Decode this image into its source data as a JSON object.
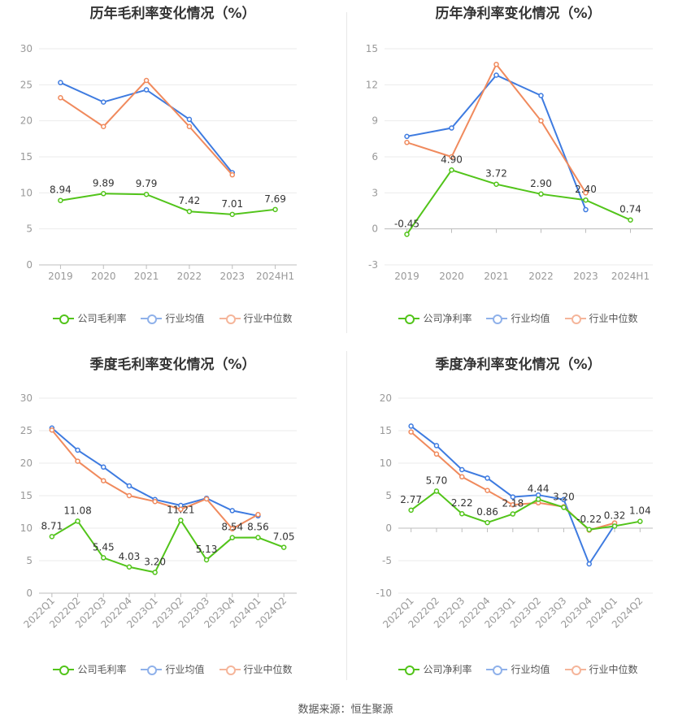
{
  "colors": {
    "company": "#52c41a",
    "avg": "#3e7be0",
    "median": "#f08a5d"
  },
  "source_label": "数据来源：恒生聚源",
  "chart_data": [
    {
      "id": "annual-gross",
      "type": "line",
      "title": "历年毛利率变化情况（%）",
      "categories": [
        "2019",
        "2020",
        "2021",
        "2022",
        "2023",
        "2024H1"
      ],
      "ylim": [
        0,
        30
      ],
      "yticks": [
        0,
        5,
        10,
        15,
        20,
        25,
        30
      ],
      "rotate_x": false,
      "series": [
        {
          "name": "公司毛利率",
          "key": "company",
          "values": [
            8.94,
            9.89,
            9.79,
            7.42,
            7.01,
            7.69
          ],
          "labels": [
            "8.94",
            "9.89",
            "9.79",
            "7.42",
            "7.01",
            "7.69"
          ]
        },
        {
          "name": "行业均值",
          "key": "avg",
          "values": [
            25.3,
            22.6,
            24.3,
            20.2,
            12.8,
            null
          ]
        },
        {
          "name": "行业中位数",
          "key": "median",
          "values": [
            23.2,
            19.2,
            25.6,
            19.2,
            12.5,
            null
          ]
        }
      ]
    },
    {
      "id": "annual-net",
      "type": "line",
      "title": "历年净利率变化情况（%）",
      "categories": [
        "2019",
        "2020",
        "2021",
        "2022",
        "2023",
        "2024H1"
      ],
      "ylim": [
        -3,
        15
      ],
      "yticks": [
        -3,
        0,
        3,
        6,
        9,
        12,
        15
      ],
      "rotate_x": false,
      "series": [
        {
          "name": "公司净利率",
          "key": "company",
          "values": [
            -0.45,
            4.9,
            3.72,
            2.9,
            2.4,
            0.74
          ],
          "labels": [
            "-0.45",
            "4.90",
            "3.72",
            "2.90",
            "2.40",
            "0.74"
          ]
        },
        {
          "name": "行业均值",
          "key": "avg",
          "values": [
            7.7,
            8.4,
            12.8,
            11.1,
            1.6,
            null
          ]
        },
        {
          "name": "行业中位数",
          "key": "median",
          "values": [
            7.2,
            6.0,
            13.7,
            9.0,
            3.0,
            null
          ]
        }
      ]
    },
    {
      "id": "quarterly-gross",
      "type": "line",
      "title": "季度毛利率变化情况（%）",
      "categories": [
        "2022Q1",
        "2022Q2",
        "2022Q3",
        "2022Q4",
        "2023Q1",
        "2023Q2",
        "2023Q3",
        "2023Q4",
        "2024Q1",
        "2024Q2"
      ],
      "ylim": [
        0,
        30
      ],
      "yticks": [
        0,
        5,
        10,
        15,
        20,
        25,
        30
      ],
      "rotate_x": true,
      "series": [
        {
          "name": "公司毛利率",
          "key": "company",
          "values": [
            8.71,
            11.08,
            5.45,
            4.03,
            3.2,
            11.21,
            5.13,
            8.54,
            8.56,
            7.05
          ],
          "labels": [
            "8.71",
            "11.08",
            "5.45",
            "4.03",
            "3.20",
            "11.21",
            "5.13",
            "8.54",
            "8.56",
            "7.05"
          ]
        },
        {
          "name": "行业均值",
          "key": "avg",
          "values": [
            25.4,
            22.0,
            19.4,
            16.5,
            14.4,
            13.5,
            14.6,
            12.7,
            11.9,
            null
          ]
        },
        {
          "name": "行业中位数",
          "key": "median",
          "values": [
            25.1,
            20.3,
            17.3,
            15.0,
            14.1,
            12.9,
            14.5,
            9.9,
            12.1,
            null
          ]
        }
      ]
    },
    {
      "id": "quarterly-net",
      "type": "line",
      "title": "季度净利率变化情况（%）",
      "categories": [
        "2022Q1",
        "2022Q2",
        "2022Q3",
        "2022Q4",
        "2023Q1",
        "2023Q2",
        "2023Q3",
        "2023Q4",
        "2024Q1",
        "2024Q2"
      ],
      "ylim": [
        -10,
        20
      ],
      "yticks": [
        -10,
        -5,
        0,
        5,
        10,
        15,
        20
      ],
      "rotate_x": true,
      "series": [
        {
          "name": "公司净利率",
          "key": "company",
          "values": [
            2.77,
            5.7,
            2.22,
            0.86,
            2.18,
            4.44,
            3.2,
            -0.22,
            0.32,
            1.04
          ],
          "labels": [
            "2.77",
            "5.70",
            "2.22",
            "0.86",
            "2.18",
            "4.44",
            "3.20",
            "-0.22",
            "0.32",
            "1.04"
          ]
        },
        {
          "name": "行业均值",
          "key": "avg",
          "values": [
            15.7,
            12.7,
            9.0,
            7.7,
            4.8,
            5.1,
            4.4,
            -5.5,
            0.5,
            null
          ]
        },
        {
          "name": "行业中位数",
          "key": "median",
          "values": [
            14.8,
            11.4,
            7.9,
            5.8,
            3.6,
            3.9,
            3.3,
            -0.3,
            0.8,
            null
          ]
        }
      ]
    }
  ]
}
